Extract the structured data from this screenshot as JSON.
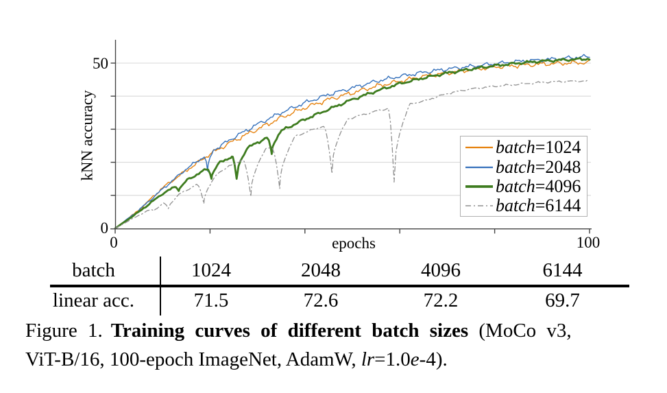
{
  "figure": {
    "caption": {
      "label": "Figure 1.",
      "title_bold": "Training curves of different batch sizes",
      "line1_tail": " (MoCo v3,",
      "line2_pre": "ViT-B/16, 100-epoch ImageNet, AdamW, ",
      "lr_italic": "lr",
      "line2_mid": "=1.0",
      "e_italic": "e",
      "line2_tail": "-4)."
    }
  },
  "table": {
    "header_label": "batch",
    "row_label": "linear acc.",
    "columns": [
      "1024",
      "2048",
      "4096",
      "6144"
    ],
    "values": [
      "71.5",
      "72.6",
      "72.2",
      "69.7"
    ]
  },
  "chart_data": {
    "type": "line",
    "xlabel": "epochs",
    "ylabel": "kNN accuracy",
    "xlim": [
      0,
      100
    ],
    "ylim": [
      0,
      56
    ],
    "axis": {
      "xticks": [
        0,
        20,
        40,
        60,
        80,
        100
      ],
      "yticks": [
        10,
        20,
        30,
        40,
        50
      ],
      "xtick_left": "0",
      "xtick_right": "100",
      "ytick_top": "50",
      "ytick_bottom": "0",
      "grid": "horizontal"
    },
    "colors": {
      "grid": "#d9d9d9",
      "spine": "#444444",
      "legend_border": "#b0b0b0"
    },
    "legend": {
      "position": "lower right inside",
      "entries": [
        {
          "var": "batch",
          "rest": "=1024"
        },
        {
          "var": "batch",
          "rest": "=2048"
        },
        {
          "var": "batch",
          "rest": "=4096"
        },
        {
          "var": "batch",
          "rest": "=6144"
        }
      ]
    },
    "series": [
      {
        "name": "batch=1024",
        "color": "#e6820e",
        "width": 1.4,
        "legend_width": 2.2,
        "dash": "solid",
        "noise": 0.85,
        "anchors": [
          [
            0,
            0
          ],
          [
            5,
            5.5
          ],
          [
            10,
            12.3
          ],
          [
            15,
            17.5
          ],
          [
            20,
            22.5
          ],
          [
            25,
            26.5
          ],
          [
            30,
            30
          ],
          [
            35,
            33.5
          ],
          [
            40,
            36.5
          ],
          [
            45,
            39
          ],
          [
            50,
            41
          ],
          [
            55,
            43
          ],
          [
            60,
            44.5
          ],
          [
            65,
            46
          ],
          [
            70,
            47
          ],
          [
            75,
            48
          ],
          [
            80,
            48.8
          ],
          [
            85,
            49.3
          ],
          [
            90,
            49.7
          ],
          [
            95,
            50
          ],
          [
            100,
            50.2
          ]
        ],
        "dips": []
      },
      {
        "name": "batch=2048",
        "color": "#3470bb",
        "width": 1.4,
        "legend_width": 2.2,
        "dash": "solid",
        "noise": 0.75,
        "anchors": [
          [
            0,
            0
          ],
          [
            5,
            5.5
          ],
          [
            10,
            11.9
          ],
          [
            15,
            18
          ],
          [
            20,
            23
          ],
          [
            25,
            27.5
          ],
          [
            30,
            31.5
          ],
          [
            35,
            35
          ],
          [
            40,
            38
          ],
          [
            45,
            40.5
          ],
          [
            50,
            42.5
          ],
          [
            55,
            44.5
          ],
          [
            60,
            46
          ],
          [
            65,
            47.2
          ],
          [
            70,
            48.2
          ],
          [
            75,
            49
          ],
          [
            80,
            49.8
          ],
          [
            85,
            50.5
          ],
          [
            90,
            51
          ],
          [
            95,
            51.5
          ],
          [
            100,
            52
          ]
        ],
        "dips": [
          [
            19.5,
            17.3,
            0.7,
            1.2
          ]
        ]
      },
      {
        "name": "batch=4096",
        "color": "#3e7c1f",
        "width": 2.8,
        "legend_width": 3.8,
        "dash": "solid",
        "noise": 0.5,
        "anchors": [
          [
            0,
            0
          ],
          [
            5,
            5
          ],
          [
            10,
            10.5
          ],
          [
            15,
            14.5
          ],
          [
            20,
            18.5
          ],
          [
            25,
            22
          ],
          [
            30,
            26
          ],
          [
            35,
            29.5
          ],
          [
            40,
            33
          ],
          [
            45,
            36
          ],
          [
            50,
            39
          ],
          [
            55,
            41.5
          ],
          [
            60,
            43.8
          ],
          [
            65,
            45.5
          ],
          [
            70,
            47
          ],
          [
            75,
            48.2
          ],
          [
            80,
            49.2
          ],
          [
            85,
            50
          ],
          [
            90,
            50.6
          ],
          [
            95,
            51
          ],
          [
            100,
            51.3
          ]
        ],
        "dips": [
          [
            13.4,
            11.3,
            0.9,
            1.8
          ],
          [
            20.3,
            15.0,
            0.9,
            1.8
          ],
          [
            25.6,
            15.0,
            1.0,
            2.2
          ],
          [
            33.0,
            22.5,
            1.0,
            2.0
          ]
        ]
      },
      {
        "name": "batch=6144",
        "color": "#8f8f8f",
        "width": 1.3,
        "legend_width": 1.6,
        "dash": "dashdot",
        "noise": 0.35,
        "anchors": [
          [
            0,
            0
          ],
          [
            5,
            4
          ],
          [
            10,
            7.5
          ],
          [
            15,
            11.5
          ],
          [
            20,
            15.5
          ],
          [
            25,
            19.5
          ],
          [
            30,
            23
          ],
          [
            35,
            26
          ],
          [
            40,
            29
          ],
          [
            45,
            31.5
          ],
          [
            50,
            33.5
          ],
          [
            55,
            35.5
          ],
          [
            60,
            37
          ],
          [
            65,
            38.5
          ],
          [
            70,
            40.8
          ],
          [
            75,
            42.2
          ],
          [
            80,
            43
          ],
          [
            85,
            43.6
          ],
          [
            90,
            44.2
          ],
          [
            95,
            44.5
          ],
          [
            100,
            44.6
          ]
        ],
        "dips": [
          [
            8.2,
            5.3,
            1.2,
            2.0
          ],
          [
            11.2,
            6.0,
            1.2,
            2.2
          ],
          [
            18.7,
            7.5,
            1.6,
            3.0
          ],
          [
            28.6,
            9.6,
            1.8,
            3.2
          ],
          [
            34.7,
            12.0,
            1.8,
            3.2
          ],
          [
            45.7,
            16.6,
            1.8,
            3.4
          ],
          [
            58.8,
            14.0,
            1.2,
            3.4
          ]
        ]
      }
    ]
  }
}
